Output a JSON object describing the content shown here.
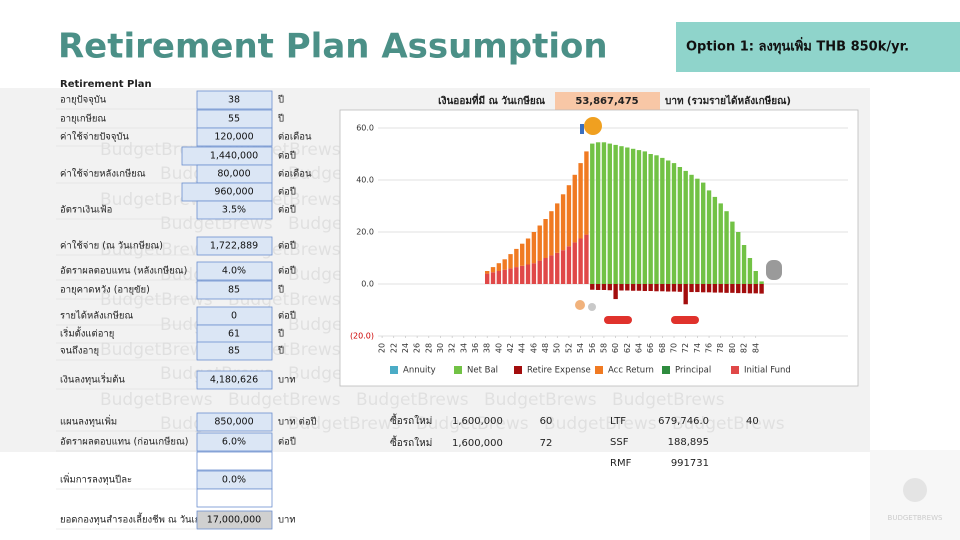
{
  "header": {
    "title": "Retirement Plan Assumption",
    "option": "Option 1: ลงทุนเพิ่ม THB 850k/yr."
  },
  "watermark": "BudgetBrews",
  "logo": "BUDGETBREWS",
  "plan": {
    "title": "Retirement Plan",
    "rows": [
      {
        "label": "อายุปัจจุบัน",
        "value": "38",
        "unit": "ปี"
      },
      {
        "label": "อายุเกษียณ",
        "value": "55",
        "unit": "ปี"
      },
      {
        "label": "ค่าใช้จ่ายปัจจุบัน",
        "value": "120,000",
        "unit": "ต่อเดือน"
      },
      {
        "value": "1,440,000",
        "unit": "ต่อปี"
      },
      {
        "label": "ค่าใช้จ่ายหลังเกษียณ",
        "value": "80,000",
        "unit": "ต่อเดือน"
      },
      {
        "value": "960,000",
        "unit": "ต่อปี"
      },
      {
        "label": "อัตราเงินเฟ้อ",
        "value": "3.5%",
        "unit": "ต่อปี"
      },
      {
        "label": "ค่าใช้จ่าย (ณ วันเกษียณ)",
        "value": "1,722,889",
        "unit": "ต่อปี"
      },
      {
        "label": "อัตราผลตอบแทน (หลังเกษียณ)",
        "value": "4.0%",
        "unit": "ต่อปี"
      },
      {
        "label": "อายุคาดหวัง (อายุขัย)",
        "value": "85",
        "unit": "ปี"
      },
      {
        "label": "รายได้หลังเกษียณ",
        "value": "0",
        "unit": "ต่อปี"
      },
      {
        "label": "เริ่มตั้งแต่อายุ",
        "value": "61",
        "unit": "ปี"
      },
      {
        "label": "จนถึงอายุ",
        "value": "85",
        "unit": "ปี"
      },
      {
        "label": "เงินลงทุนเริ่มต้น",
        "value": "4,180,626",
        "unit": "บาท"
      },
      {
        "label": "แผนลงทุนเพิ่ม",
        "value": "850,000",
        "unit": "บาท ต่อปี"
      },
      {
        "label": "อัตราผลตอบแทน (ก่อนเกษียณ)",
        "value": "6.0%",
        "unit": "ต่อปี"
      },
      {
        "label": "เพิ่มการลงทุนปีละ",
        "value": "0.0%"
      },
      {
        "label": "ยอดกองทุนสำรองเลี้ยงชีพ ณ วันเกษียณ",
        "value": "17,000,000",
        "unit": "บาท"
      }
    ]
  },
  "savings": {
    "label": "เงินออมที่มี ณ วันเกษียณ",
    "value": "53,867,475",
    "unit": "บาท (รวมรายได้หลังเกษียณ)"
  },
  "purchases": [
    {
      "label": "ซื้อรถใหม่",
      "amount": "1,600,000",
      "age": "60"
    },
    {
      "label": "ซื้อรถใหม่",
      "amount": "1,600,000",
      "age": "72"
    }
  ],
  "funds": [
    {
      "name": "LTF",
      "value": "679,746.0",
      "extra": "40"
    },
    {
      "name": "SSF",
      "value": "188,895"
    },
    {
      "name": "RMF",
      "value": "991731"
    }
  ],
  "chart_data": {
    "type": "bar",
    "stacked": true,
    "x": [
      38,
      39,
      40,
      41,
      42,
      43,
      44,
      45,
      46,
      47,
      48,
      49,
      50,
      51,
      52,
      53,
      54,
      55,
      56,
      57,
      58,
      59,
      60,
      61,
      62,
      63,
      64,
      65,
      66,
      67,
      68,
      69,
      70,
      71,
      72,
      73,
      74,
      75,
      76,
      77,
      78,
      79,
      80,
      81,
      82,
      83,
      84,
      85
    ],
    "xlim": [
      19.3,
      99.8
    ],
    "xticks": [
      20,
      22,
      24,
      26,
      28,
      30,
      32,
      34,
      36,
      38,
      40,
      42,
      44,
      46,
      48,
      50,
      52,
      54,
      56,
      58,
      60,
      62,
      64,
      66,
      68,
      70,
      72,
      74,
      76,
      78,
      80,
      82,
      84
    ],
    "ylim": [
      -20,
      62
    ],
    "yticks": [
      {
        "value": -20,
        "label": "(20.0)"
      },
      {
        "value": 0,
        "label": "0.0"
      },
      {
        "value": 20,
        "label": "20.0"
      },
      {
        "value": 40,
        "label": "40.0"
      },
      {
        "value": 60,
        "label": "60.0"
      }
    ],
    "grid": true,
    "series": [
      {
        "name": "Annuity",
        "color": "#4bacc6",
        "values": [
          null,
          null,
          null,
          null,
          null,
          null,
          null,
          null,
          null,
          null,
          null,
          null,
          null,
          null,
          null,
          null,
          null,
          null,
          null,
          null,
          null,
          null,
          null,
          null,
          null,
          null,
          null,
          null,
          null,
          null,
          null,
          null,
          null,
          null,
          null,
          null,
          null,
          null,
          null,
          null,
          null,
          null,
          null,
          null,
          null,
          null,
          null,
          null
        ]
      },
      {
        "name": "Net Bal",
        "color": "#72c245",
        "values": [
          null,
          null,
          null,
          null,
          null,
          null,
          null,
          null,
          null,
          null,
          null,
          null,
          null,
          null,
          null,
          null,
          null,
          null,
          54,
          54.5,
          54.5,
          54,
          53.5,
          53,
          52.5,
          52,
          51.5,
          51,
          50,
          49.5,
          48.5,
          47.5,
          46.5,
          45,
          43.5,
          42,
          40.5,
          39,
          36,
          33.5,
          31,
          28,
          24,
          20,
          15,
          10,
          5,
          1
        ]
      },
      {
        "name": "Retire Expense",
        "color": "#a30d0d",
        "values": [
          null,
          null,
          null,
          null,
          null,
          null,
          null,
          null,
          null,
          null,
          null,
          null,
          null,
          null,
          null,
          null,
          null,
          null,
          -2.2,
          -2.3,
          -2.3,
          -2.4,
          -5.8,
          -2.5,
          -2.5,
          -2.6,
          -2.6,
          -2.7,
          -2.7,
          -2.8,
          -2.8,
          -2.9,
          -2.9,
          -3,
          -7.8,
          -3.1,
          -3.1,
          -3.2,
          -3.2,
          -3.3,
          -3.3,
          -3.4,
          -3.4,
          -3.5,
          -3.5,
          -3.6,
          -3.6,
          -3.7
        ]
      },
      {
        "name": "Acc Return",
        "color": "#f07a22",
        "values": [
          1,
          2,
          3,
          4,
          5.5,
          7,
          8.5,
          10,
          12,
          13.5,
          15,
          17,
          19,
          21.5,
          23.5,
          26,
          29,
          32,
          null,
          null,
          null,
          null,
          null,
          null,
          null,
          null,
          null,
          null,
          null,
          null,
          null,
          null,
          null,
          null,
          null,
          null,
          null,
          null,
          null,
          null,
          null,
          null,
          null,
          null,
          null,
          null,
          null,
          null
        ]
      },
      {
        "name": "Principal",
        "color": "#2e8b3e",
        "values": [
          null,
          null,
          null,
          null,
          null,
          null,
          null,
          null,
          null,
          null,
          null,
          null,
          null,
          null,
          null,
          null,
          null,
          null,
          null,
          null,
          null,
          null,
          null,
          null,
          null,
          null,
          null,
          null,
          null,
          null,
          null,
          null,
          null,
          null,
          null,
          null,
          null,
          null,
          null,
          null,
          null,
          null,
          null,
          null,
          null,
          null,
          null,
          null
        ]
      },
      {
        "name": "Initial Fund",
        "color": "#e04848",
        "values": [
          4,
          4.5,
          5,
          5.5,
          6,
          6.5,
          7,
          7.5,
          8,
          9,
          10,
          11,
          12,
          13,
          14.5,
          16,
          17.5,
          19,
          null,
          null,
          null,
          null,
          null,
          null,
          null,
          null,
          null,
          null,
          null,
          null,
          null,
          null,
          null,
          null,
          null,
          null,
          null,
          null,
          null,
          null,
          null,
          null,
          null,
          null,
          null,
          null,
          null,
          null
        ]
      }
    ],
    "stack_order": [
      "Initial Fund",
      "Principal",
      "Acc Return",
      "Net Bal",
      "Annuity",
      "Retire Expense"
    ]
  }
}
